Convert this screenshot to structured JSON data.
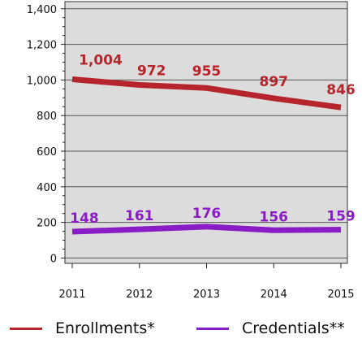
{
  "chart_data": {
    "type": "line",
    "x": [
      "2011",
      "2012",
      "2013",
      "2014",
      "2015"
    ],
    "series": [
      {
        "name": "Enrollments*",
        "values": [
          1004,
          972,
          955,
          897,
          846
        ],
        "labels": [
          "1,004",
          "972",
          "955",
          "897",
          "846"
        ],
        "color": "#b5252b"
      },
      {
        "name": "Credentials**",
        "values": [
          148,
          161,
          176,
          156,
          159
        ],
        "labels": [
          "148",
          "161",
          "176",
          "156",
          "159"
        ],
        "color": "#8a1cc6"
      }
    ],
    "yticks": [
      0,
      200,
      400,
      600,
      800,
      1000,
      1200,
      1400
    ],
    "ytick_labels": [
      "0",
      "200",
      "400",
      "600",
      "800",
      "1,000",
      "1,200",
      "1,400"
    ],
    "ylim": [
      -30,
      1440
    ],
    "grid": true,
    "plot_background": "#dcdcdc",
    "legend_position": "bottom"
  }
}
